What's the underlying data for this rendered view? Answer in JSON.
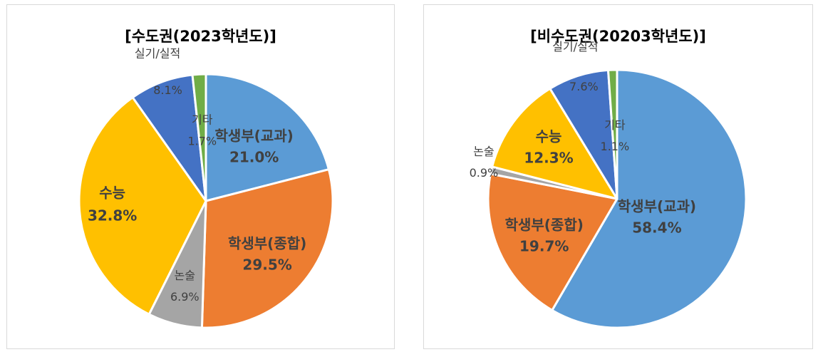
{
  "chart_data": [
    {
      "type": "pie",
      "title": "[수도권(2023학년도)]",
      "slices": [
        {
          "label": "학생부(교과)",
          "value": 21.0,
          "value_label": "21.0%",
          "color": "#5B9BD5"
        },
        {
          "label": "학생부(종합)",
          "value": 29.5,
          "value_label": "29.5%",
          "color": "#ED7D31"
        },
        {
          "label": "논술",
          "value": 6.9,
          "value_label": "6.9%",
          "color": "#A5A5A5"
        },
        {
          "label": "수능",
          "value": 32.8,
          "value_label": "32.8%",
          "color": "#FFC000"
        },
        {
          "label": "실기/실적",
          "value": 8.1,
          "value_label": "8.1%",
          "color": "#4472C4"
        },
        {
          "label": "기타",
          "value": 1.7,
          "value_label": "1.7%",
          "color": "#70AD47"
        }
      ]
    },
    {
      "type": "pie",
      "title": "[비수도권(20203학년도)]",
      "slices": [
        {
          "label": "학생부(교과)",
          "value": 58.4,
          "value_label": "58.4%",
          "color": "#5B9BD5"
        },
        {
          "label": "학생부(종합)",
          "value": 19.7,
          "value_label": "19.7%",
          "color": "#ED7D31"
        },
        {
          "label": "논술",
          "value": 0.9,
          "value_label": "0.9%",
          "color": "#A5A5A5"
        },
        {
          "label": "수능",
          "value": 12.3,
          "value_label": "12.3%",
          "color": "#FFC000"
        },
        {
          "label": "실기/실적",
          "value": 7.6,
          "value_label": "7.6%",
          "color": "#4472C4"
        },
        {
          "label": "기타",
          "value": 1.1,
          "value_label": "1.1%",
          "color": "#70AD47"
        }
      ]
    }
  ]
}
